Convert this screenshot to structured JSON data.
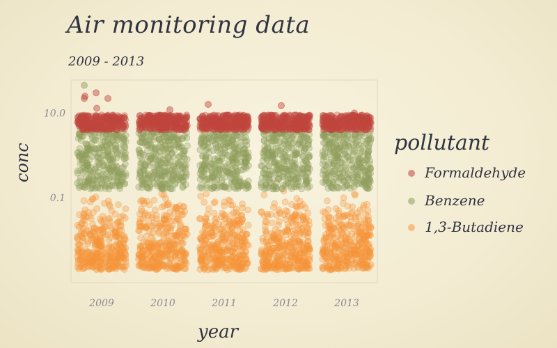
{
  "chart_data": {
    "type": "scatter",
    "title": "Air monitoring data",
    "subtitle": "2009 - 2013",
    "xlabel": "year",
    "ylabel": "conc",
    "categories": [
      "2009",
      "2010",
      "2011",
      "2012",
      "2013"
    ],
    "y_scale": "log",
    "ylim": [
      0.001,
      60
    ],
    "y_ticks": [
      {
        "value": 10,
        "label": "10.0"
      },
      {
        "value": 0.1,
        "label": "0.1"
      }
    ],
    "legend_title": "pollutant",
    "legend_position": "right",
    "series": [
      {
        "name": "Formaldehyde",
        "color": "#c0463e",
        "range": [
          4,
          9
        ],
        "outliers": [
          {
            "x": "2009",
            "y": 22
          },
          {
            "x": "2009",
            "y": 30
          },
          {
            "x": "2009",
            "y": 22
          },
          {
            "x": "2009",
            "y": 25
          },
          {
            "x": "2009",
            "y": 13
          },
          {
            "x": "2010",
            "y": 12
          },
          {
            "x": "2011",
            "y": 16
          },
          {
            "x": "2012",
            "y": 15
          },
          {
            "x": "2013",
            "y": 10
          }
        ]
      },
      {
        "name": "Benzene",
        "color": "#8e9e5c",
        "range": [
          0.16,
          4
        ],
        "outliers": [
          {
            "x": "2009",
            "y": 45
          }
        ]
      },
      {
        "name": "1,3-Butadiene",
        "color": "#f7963a",
        "range": [
          0.002,
          0.16
        ],
        "outliers": []
      }
    ],
    "grid": false
  }
}
